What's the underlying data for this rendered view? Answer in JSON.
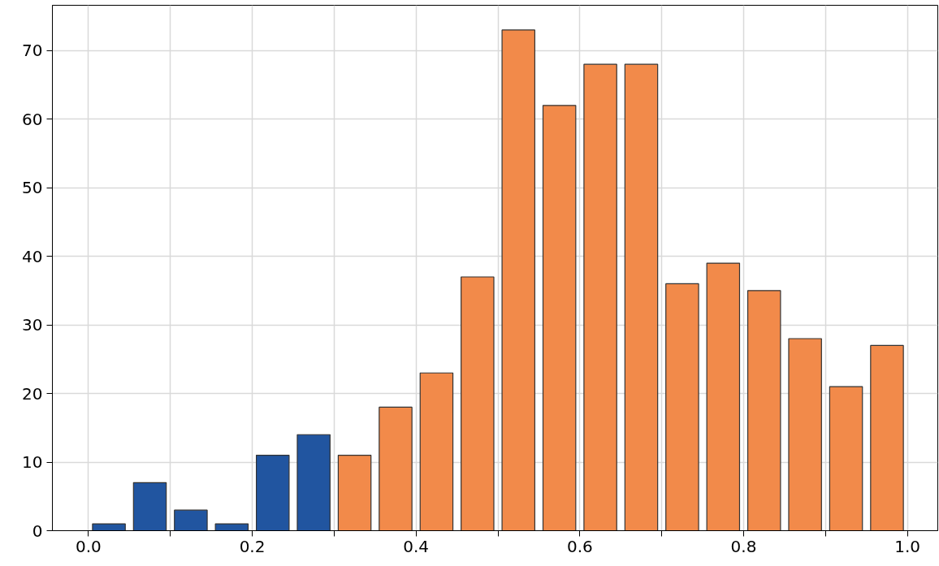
{
  "chart_data": {
    "type": "histogram",
    "bins": [
      0.0,
      0.05,
      0.1,
      0.15,
      0.2,
      0.25,
      0.3,
      0.35,
      0.4,
      0.45,
      0.5,
      0.55,
      0.6,
      0.65,
      0.7,
      0.75,
      0.8,
      0.85,
      0.9,
      0.95,
      1.0
    ],
    "values": [
      1,
      7,
      3,
      1,
      11,
      14,
      11,
      18,
      23,
      37,
      73,
      62,
      68,
      68,
      36,
      39,
      35,
      28,
      21,
      27
    ],
    "colors": [
      "#2155a0",
      "#2155a0",
      "#2155a0",
      "#2155a0",
      "#2155a0",
      "#2155a0",
      "#f28a4a",
      "#f28a4a",
      "#f28a4a",
      "#f28a4a",
      "#f28a4a",
      "#f28a4a",
      "#f28a4a",
      "#f28a4a",
      "#f28a4a",
      "#f28a4a",
      "#f28a4a",
      "#f28a4a",
      "#f28a4a",
      "#f28a4a"
    ],
    "xlim": [
      -0.044,
      1.037
    ],
    "ylim": [
      0,
      76.6
    ],
    "xticks": [
      {
        "value": 0,
        "label": "0.0"
      },
      {
        "value": 0.1,
        "label": null
      },
      {
        "value": 0.2,
        "label": "0.2"
      },
      {
        "value": 0.3,
        "label": null
      },
      {
        "value": 0.4,
        "label": "0.4"
      },
      {
        "value": 0.5,
        "label": null
      },
      {
        "value": 0.6,
        "label": "0.6"
      },
      {
        "value": 0.7,
        "label": null
      },
      {
        "value": 0.8,
        "label": "0.8"
      },
      {
        "value": 0.9,
        "label": null
      },
      {
        "value": 1,
        "label": "1.0"
      }
    ],
    "yticks": [
      0,
      10,
      20,
      30,
      40,
      50,
      60,
      70
    ],
    "grid": true
  }
}
